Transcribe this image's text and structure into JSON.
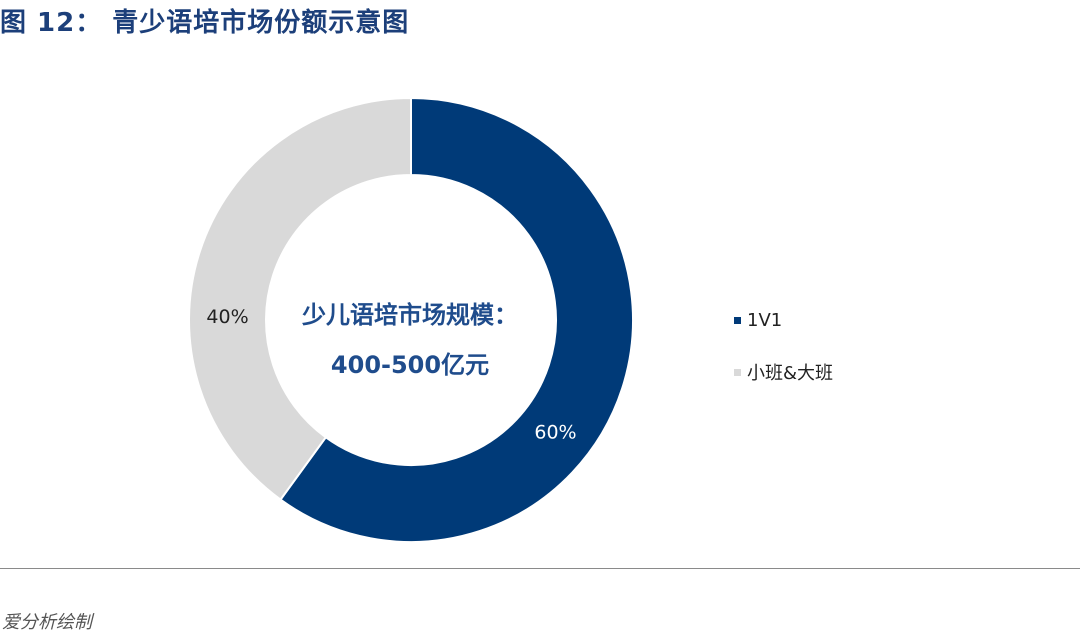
{
  "header": {
    "figure_number": "图 12：",
    "title": "青少语培市场份额示意图"
  },
  "center_label": {
    "line1": "少儿语培市场规模：",
    "line2": "400-500亿元"
  },
  "source": "爱分析绘制",
  "chart_data": {
    "type": "pie",
    "donut": true,
    "slices": [
      {
        "label": "1V1",
        "value": 60,
        "display": "60%",
        "color": "#003a78"
      },
      {
        "label": "小班&大班",
        "value": 40,
        "display": "40%",
        "color": "#d9d9d9"
      }
    ],
    "legend_position": "right"
  }
}
